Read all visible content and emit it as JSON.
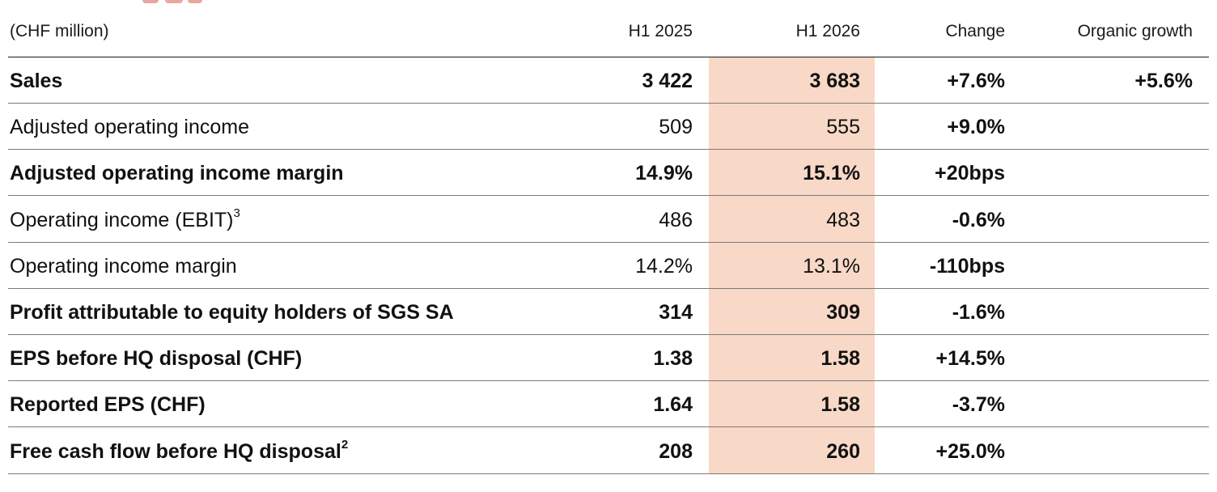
{
  "header": {
    "unit_label": "(CHF million)",
    "col_h1_2025": "H1 2025",
    "col_h1_2026": "H1 2026",
    "col_change": "Change",
    "col_organic_growth": "Organic growth"
  },
  "colors": {
    "highlight_column": "#f8d8c6",
    "rule": "#7a7a7a",
    "text": "#111111"
  },
  "rows": [
    {
      "label": "Sales",
      "sup": "",
      "h1_2025": "3 422",
      "h1_2026": "3 683",
      "change": "+7.6%",
      "organic": "+5.6%",
      "bold": true
    },
    {
      "label": "Adjusted operating income",
      "sup": "",
      "h1_2025": "509",
      "h1_2026": "555",
      "change": "+9.0%",
      "organic": "",
      "bold": false
    },
    {
      "label": "Adjusted operating income margin",
      "sup": "",
      "h1_2025": "14.9%",
      "h1_2026": "15.1%",
      "change": "+20bps",
      "organic": "",
      "bold": true
    },
    {
      "label": "Operating income (EBIT)",
      "sup": "3",
      "h1_2025": "486",
      "h1_2026": "483",
      "change": "-0.6%",
      "organic": "",
      "bold": false
    },
    {
      "label": "Operating income margin",
      "sup": "",
      "h1_2025": "14.2%",
      "h1_2026": "13.1%",
      "change": "-110bps",
      "organic": "",
      "bold": false
    },
    {
      "label": "Profit attributable to equity holders of SGS SA",
      "sup": "",
      "h1_2025": "314",
      "h1_2026": "309",
      "change": "-1.6%",
      "organic": "",
      "bold": true
    },
    {
      "label": "EPS before HQ disposal (CHF)",
      "sup": "",
      "h1_2025": "1.38",
      "h1_2026": "1.58",
      "change": "+14.5%",
      "organic": "",
      "bold": true
    },
    {
      "label": "Reported EPS (CHF)",
      "sup": "",
      "h1_2025": "1.64",
      "h1_2026": "1.58",
      "change": "-3.7%",
      "organic": "",
      "bold": true
    },
    {
      "label": "Free cash flow before HQ disposal",
      "sup": "2",
      "h1_2025": "208",
      "h1_2026": "260",
      "change": "+25.0%",
      "organic": "",
      "bold": true
    }
  ]
}
